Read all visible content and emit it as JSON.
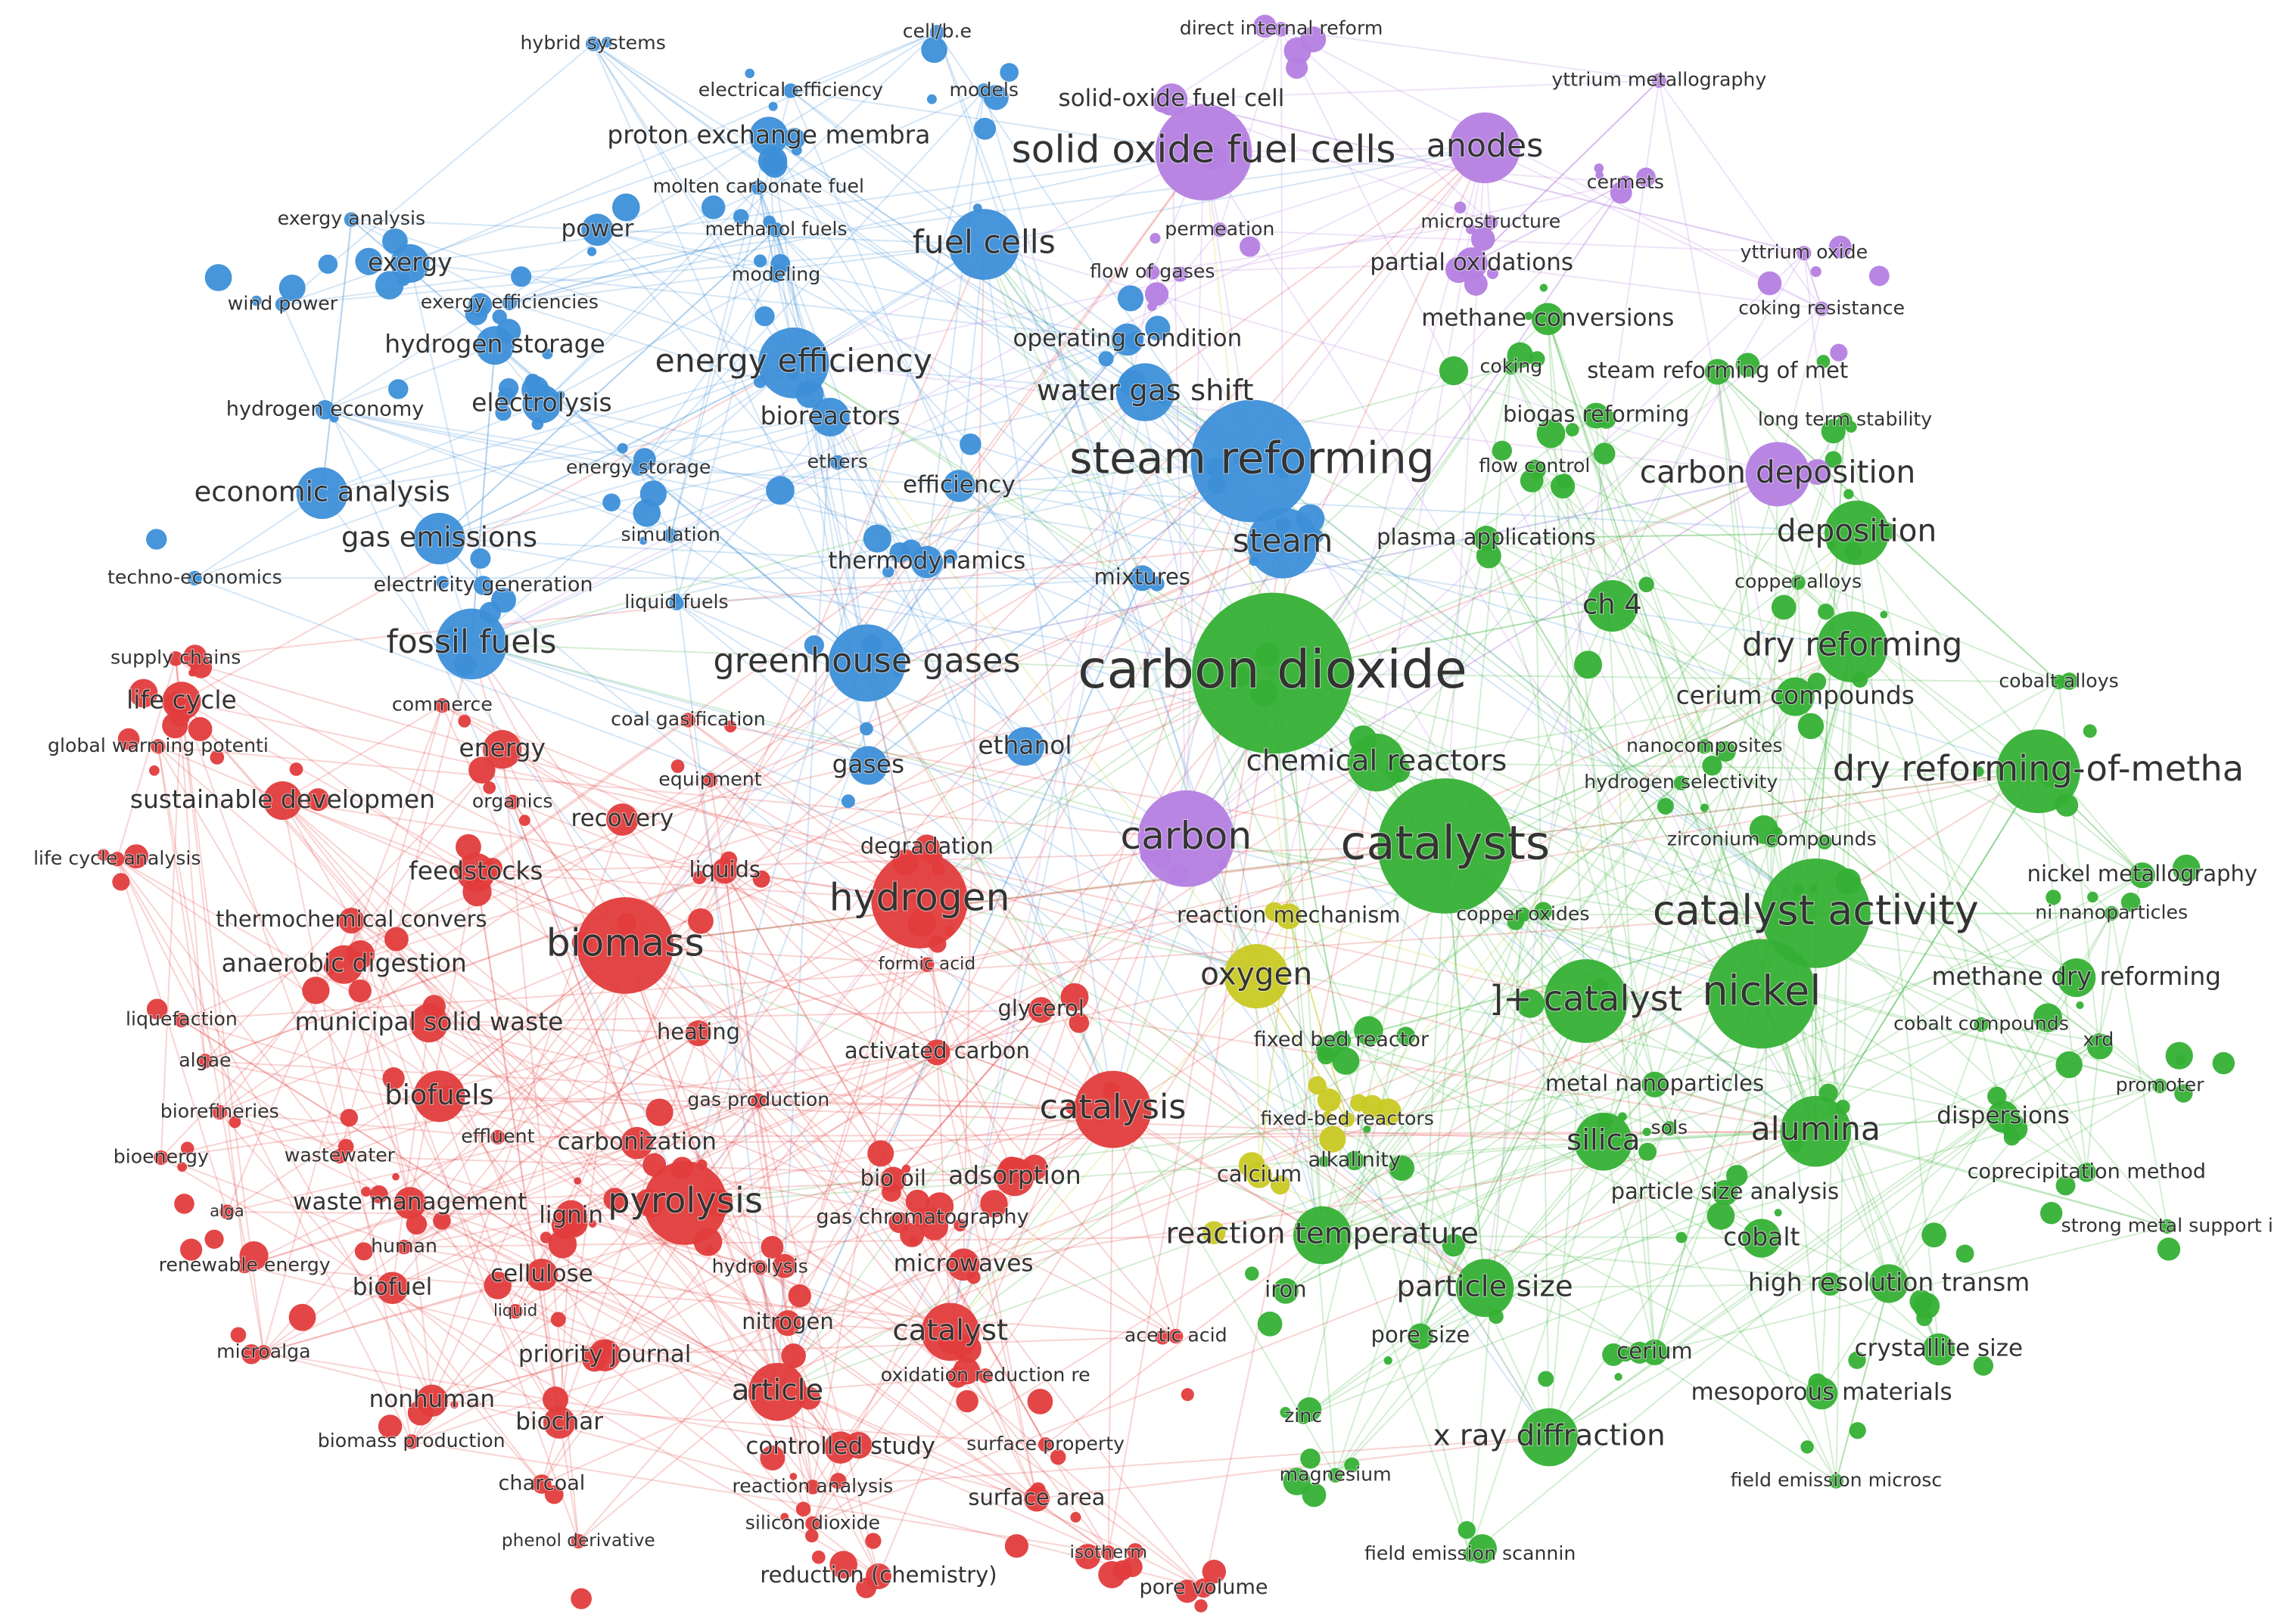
{
  "nodes": [
    {
      "label": "hybrid systems",
      "color": "#3d8fd8"
    },
    {
      "label": "electrical efficiency",
      "color": "#3d8fd8"
    },
    {
      "label": "cell/b.e",
      "color": "#3d8fd8"
    },
    {
      "label": "models",
      "color": "#3d8fd8"
    },
    {
      "label": "proton exchange membra",
      "color": "#3d8fd8"
    },
    {
      "label": "molten carbonate fuel",
      "color": "#3d8fd8"
    },
    {
      "label": "exergy analysis",
      "color": "#3d8fd8"
    },
    {
      "label": "power",
      "color": "#3d8fd8"
    },
    {
      "label": "methanol fuels",
      "color": "#3d8fd8"
    },
    {
      "label": "fuel cells",
      "color": "#3d8fd8"
    },
    {
      "label": "exergy",
      "color": "#3d8fd8"
    },
    {
      "label": "modeling",
      "color": "#3d8fd8"
    },
    {
      "label": "wind power",
      "color": "#3d8fd8"
    },
    {
      "label": "exergy efficiencies",
      "color": "#3d8fd8"
    },
    {
      "label": "hydrogen storage",
      "color": "#3d8fd8"
    },
    {
      "label": "energy efficiency",
      "color": "#3d8fd8"
    },
    {
      "label": "operating condition",
      "color": "#3d8fd8"
    },
    {
      "label": "water gas shift",
      "color": "#3d8fd8"
    },
    {
      "label": "hydrogen economy",
      "color": "#3d8fd8"
    },
    {
      "label": "electrolysis",
      "color": "#3d8fd8"
    },
    {
      "label": "bioreactors",
      "color": "#3d8fd8"
    },
    {
      "label": "economic analysis",
      "color": "#3d8fd8"
    },
    {
      "label": "energy storage",
      "color": "#3d8fd8"
    },
    {
      "label": "ethers",
      "color": "#3d8fd8"
    },
    {
      "label": "efficiency",
      "color": "#3d8fd8"
    },
    {
      "label": "steam reforming",
      "color": "#3d8fd8"
    },
    {
      "label": "gas emissions",
      "color": "#3d8fd8"
    },
    {
      "label": "simulation",
      "color": "#3d8fd8"
    },
    {
      "label": "steam",
      "color": "#3d8fd8"
    },
    {
      "label": "thermodynamics",
      "color": "#3d8fd8"
    },
    {
      "label": "techno-economics",
      "color": "#3d8fd8"
    },
    {
      "label": "electricity generation",
      "color": "#3d8fd8"
    },
    {
      "label": "mixtures",
      "color": "#3d8fd8"
    },
    {
      "label": "liquid fuels",
      "color": "#3d8fd8"
    },
    {
      "label": "fossil fuels",
      "color": "#3d8fd8"
    },
    {
      "label": "greenhouse gases",
      "color": "#3d8fd8"
    },
    {
      "label": "gases",
      "color": "#3d8fd8"
    },
    {
      "label": "ethanol",
      "color": "#3d8fd8"
    },
    {
      "label": "direct internal reform",
      "color": "#b47fe0"
    },
    {
      "label": "yttrium metallography",
      "color": "#b47fe0"
    },
    {
      "label": "solid-oxide fuel cell",
      "color": "#b47fe0"
    },
    {
      "label": "solid oxide fuel cells",
      "color": "#b47fe0"
    },
    {
      "label": "anodes",
      "color": "#b47fe0"
    },
    {
      "label": "cermets",
      "color": "#b47fe0"
    },
    {
      "label": "permeation",
      "color": "#b47fe0"
    },
    {
      "label": "microstructure",
      "color": "#b47fe0"
    },
    {
      "label": "yttrium oxide",
      "color": "#b47fe0"
    },
    {
      "label": "flow of gases",
      "color": "#b47fe0"
    },
    {
      "label": "partial oxidations",
      "color": "#b47fe0"
    },
    {
      "label": "coking resistance",
      "color": "#b47fe0"
    },
    {
      "label": "carbon deposition",
      "color": "#b47fe0"
    },
    {
      "label": "carbon",
      "color": "#b47fe0"
    },
    {
      "label": "methane conversions",
      "color": "#35b035"
    },
    {
      "label": "coking",
      "color": "#35b035"
    },
    {
      "label": "steam reforming of met",
      "color": "#35b035"
    },
    {
      "label": "biogas reforming",
      "color": "#35b035"
    },
    {
      "label": "long term stability",
      "color": "#35b035"
    },
    {
      "label": "flow control",
      "color": "#35b035"
    },
    {
      "label": "plasma applications",
      "color": "#35b035"
    },
    {
      "label": "deposition",
      "color": "#35b035"
    },
    {
      "label": "copper alloys",
      "color": "#35b035"
    },
    {
      "label": "ch 4",
      "color": "#35b035"
    },
    {
      "label": "dry reforming",
      "color": "#35b035"
    },
    {
      "label": "carbon dioxide",
      "color": "#35b035"
    },
    {
      "label": "cerium compounds",
      "color": "#35b035"
    },
    {
      "label": "cobalt alloys",
      "color": "#35b035"
    },
    {
      "label": "nanocomposites",
      "color": "#35b035"
    },
    {
      "label": "chemical reactors",
      "color": "#35b035"
    },
    {
      "label": "dry reforming-of-metha",
      "color": "#35b035"
    },
    {
      "label": "hydrogen selectivity",
      "color": "#35b035"
    },
    {
      "label": "catalysts",
      "color": "#35b035"
    },
    {
      "label": "zirconium compounds",
      "color": "#35b035"
    },
    {
      "label": "nickel metallography",
      "color": "#35b035"
    },
    {
      "label": "catalyst activity",
      "color": "#35b035"
    },
    {
      "label": "ni nanoparticles",
      "color": "#35b035"
    },
    {
      "label": "copper oxides",
      "color": "#35b035"
    },
    {
      "label": "methane dry reforming",
      "color": "#35b035"
    },
    {
      "label": "nickel",
      "color": "#35b035"
    },
    {
      "label": "]+ catalyst",
      "color": "#35b035"
    },
    {
      "label": "cobalt compounds",
      "color": "#35b035"
    },
    {
      "label": "xrd",
      "color": "#35b035"
    },
    {
      "label": "fixed bed reactor",
      "color": "#35b035"
    },
    {
      "label": "metal nanoparticles",
      "color": "#35b035"
    },
    {
      "label": "promoter",
      "color": "#35b035"
    },
    {
      "label": "sols",
      "color": "#35b035"
    },
    {
      "label": "silica",
      "color": "#35b035"
    },
    {
      "label": "alumina",
      "color": "#35b035"
    },
    {
      "label": "dispersions",
      "color": "#35b035"
    },
    {
      "label": "alkalinity",
      "color": "#35b035"
    },
    {
      "label": "coprecipitation method",
      "color": "#35b035"
    },
    {
      "label": "particle size analysis",
      "color": "#35b035"
    },
    {
      "label": "strong metal support i",
      "color": "#35b035"
    },
    {
      "label": "reaction temperature",
      "color": "#35b035"
    },
    {
      "label": "cobalt",
      "color": "#35b035"
    },
    {
      "label": "iron",
      "color": "#35b035"
    },
    {
      "label": "particle size",
      "color": "#35b035"
    },
    {
      "label": "high resolution transm",
      "color": "#35b035"
    },
    {
      "label": "pore size",
      "color": "#35b035"
    },
    {
      "label": "cerium",
      "color": "#35b035"
    },
    {
      "label": "crystallite size",
      "color": "#35b035"
    },
    {
      "label": "mesoporous materials",
      "color": "#35b035"
    },
    {
      "label": "zinc",
      "color": "#35b035"
    },
    {
      "label": "x ray diffraction",
      "color": "#35b035"
    },
    {
      "label": "magnesium",
      "color": "#35b035"
    },
    {
      "label": "field emission microsc",
      "color": "#35b035"
    },
    {
      "label": "field emission scannin",
      "color": "#35b035"
    },
    {
      "label": "reaction mechanism",
      "color": "#c9c924"
    },
    {
      "label": "oxygen",
      "color": "#c9c924"
    },
    {
      "label": "fixed-bed reactors",
      "color": "#c9c924"
    },
    {
      "label": "calcium",
      "color": "#c9c924"
    },
    {
      "label": "supply chains",
      "color": "#e23c3c"
    },
    {
      "label": "life cycle",
      "color": "#e23c3c"
    },
    {
      "label": "commerce",
      "color": "#e23c3c"
    },
    {
      "label": "global warming potenti",
      "color": "#e23c3c"
    },
    {
      "label": "coal gasification",
      "color": "#e23c3c"
    },
    {
      "label": "energy",
      "color": "#e23c3c"
    },
    {
      "label": "equipment",
      "color": "#e23c3c"
    },
    {
      "label": "sustainable developmen",
      "color": "#e23c3c"
    },
    {
      "label": "organics",
      "color": "#e23c3c"
    },
    {
      "label": "recovery",
      "color": "#e23c3c"
    },
    {
      "label": "degradation",
      "color": "#e23c3c"
    },
    {
      "label": "life cycle analysis",
      "color": "#e23c3c"
    },
    {
      "label": "feedstocks",
      "color": "#e23c3c"
    },
    {
      "label": "liquids",
      "color": "#e23c3c"
    },
    {
      "label": "thermochemical convers",
      "color": "#e23c3c"
    },
    {
      "label": "hydrogen",
      "color": "#e23c3c"
    },
    {
      "label": "biomass",
      "color": "#e23c3c"
    },
    {
      "label": "anaerobic digestion",
      "color": "#e23c3c"
    },
    {
      "label": "formic acid",
      "color": "#e23c3c"
    },
    {
      "label": "glycerol",
      "color": "#e23c3c"
    },
    {
      "label": "liquefaction",
      "color": "#e23c3c"
    },
    {
      "label": "municipal solid waste",
      "color": "#e23c3c"
    },
    {
      "label": "heating",
      "color": "#e23c3c"
    },
    {
      "label": "activated carbon",
      "color": "#e23c3c"
    },
    {
      "label": "algae",
      "color": "#e23c3c"
    },
    {
      "label": "biorefineries",
      "color": "#e23c3c"
    },
    {
      "label": "biofuels",
      "color": "#e23c3c"
    },
    {
      "label": "gas production",
      "color": "#e23c3c"
    },
    {
      "label": "catalysis",
      "color": "#e23c3c"
    },
    {
      "label": "effluent",
      "color": "#e23c3c"
    },
    {
      "label": "carbonization",
      "color": "#e23c3c"
    },
    {
      "label": "bioenergy",
      "color": "#e23c3c"
    },
    {
      "label": "wastewater",
      "color": "#e23c3c"
    },
    {
      "label": "bio oil",
      "color": "#e23c3c"
    },
    {
      "label": "adsorption",
      "color": "#e23c3c"
    },
    {
      "label": "alga",
      "color": "#e23c3c"
    },
    {
      "label": "waste management",
      "color": "#e23c3c"
    },
    {
      "label": "lignin",
      "color": "#e23c3c"
    },
    {
      "label": "pyrolysis",
      "color": "#e23c3c"
    },
    {
      "label": "gas chromatography",
      "color": "#e23c3c"
    },
    {
      "label": "human",
      "color": "#e23c3c"
    },
    {
      "label": "renewable energy",
      "color": "#e23c3c"
    },
    {
      "label": "hydrolysis",
      "color": "#e23c3c"
    },
    {
      "label": "microwaves",
      "color": "#e23c3c"
    },
    {
      "label": "cellulose",
      "color": "#e23c3c"
    },
    {
      "label": "biofuel",
      "color": "#e23c3c"
    },
    {
      "label": "liquid",
      "color": "#e23c3c"
    },
    {
      "label": "nitrogen",
      "color": "#e23c3c"
    },
    {
      "label": "catalyst",
      "color": "#e23c3c"
    },
    {
      "label": "acetic acid",
      "color": "#e23c3c"
    },
    {
      "label": "microalga",
      "color": "#e23c3c"
    },
    {
      "label": "priority journal",
      "color": "#e23c3c"
    },
    {
      "label": "oxidation reduction re",
      "color": "#e23c3c"
    },
    {
      "label": "article",
      "color": "#e23c3c"
    },
    {
      "label": "nonhuman",
      "color": "#e23c3c"
    },
    {
      "label": "biochar",
      "color": "#e23c3c"
    },
    {
      "label": "biomass production",
      "color": "#e23c3c"
    },
    {
      "label": "controlled study",
      "color": "#e23c3c"
    },
    {
      "label": "surface property",
      "color": "#e23c3c"
    },
    {
      "label": "charcoal",
      "color": "#e23c3c"
    },
    {
      "label": "reaction analysis",
      "color": "#e23c3c"
    },
    {
      "label": "surface area",
      "color": "#e23c3c"
    },
    {
      "label": "silicon dioxide",
      "color": "#e23c3c"
    },
    {
      "label": "phenol derivative",
      "color": "#e23c3c"
    },
    {
      "label": "isotherm",
      "color": "#e23c3c"
    },
    {
      "label": "reduction (chemistry)",
      "color": "#e23c3c"
    },
    {
      "label": "pore volume",
      "color": "#e23c3c"
    }
  ]
}
